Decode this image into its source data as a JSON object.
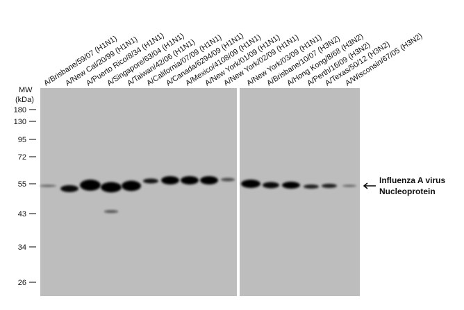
{
  "figure": {
    "lanes": [
      "A/Brisbane/59/07 (H1N1)",
      "A/New Cal/20/99 (H1N1)",
      "A/Puerto Rico/8/34 (H1N1)",
      "A/Singapore/63/04 (H1N1)",
      "A/Taiwan/42/06 (H1N1)",
      "A/California/07/09 (H1N1)",
      "A/Canada/6294/09 (H1N1)",
      "A/Mexico/4108/09 (H1N1)",
      "A/New York/01/09 (H1N1)",
      "A/New York/02/09 (H1N1)",
      "A/New York/03/09 (H1N1)",
      "A/Brisbane/10/07 (H3N2)",
      "A/Hong Kong/8/68 (H3N2)",
      "A/Perth/16/09 (H3N2)",
      "A/Texas/50/12 (H3N2)",
      "A/Wisconsin/67/05 (H3N2)"
    ],
    "mw_title": [
      "MW",
      "(kDa)"
    ],
    "markers": [
      "180",
      "130",
      "95",
      "72",
      "55",
      "43",
      "34",
      "26"
    ],
    "annotation": [
      "Influenza A virus",
      "Nucleoprotein"
    ]
  }
}
